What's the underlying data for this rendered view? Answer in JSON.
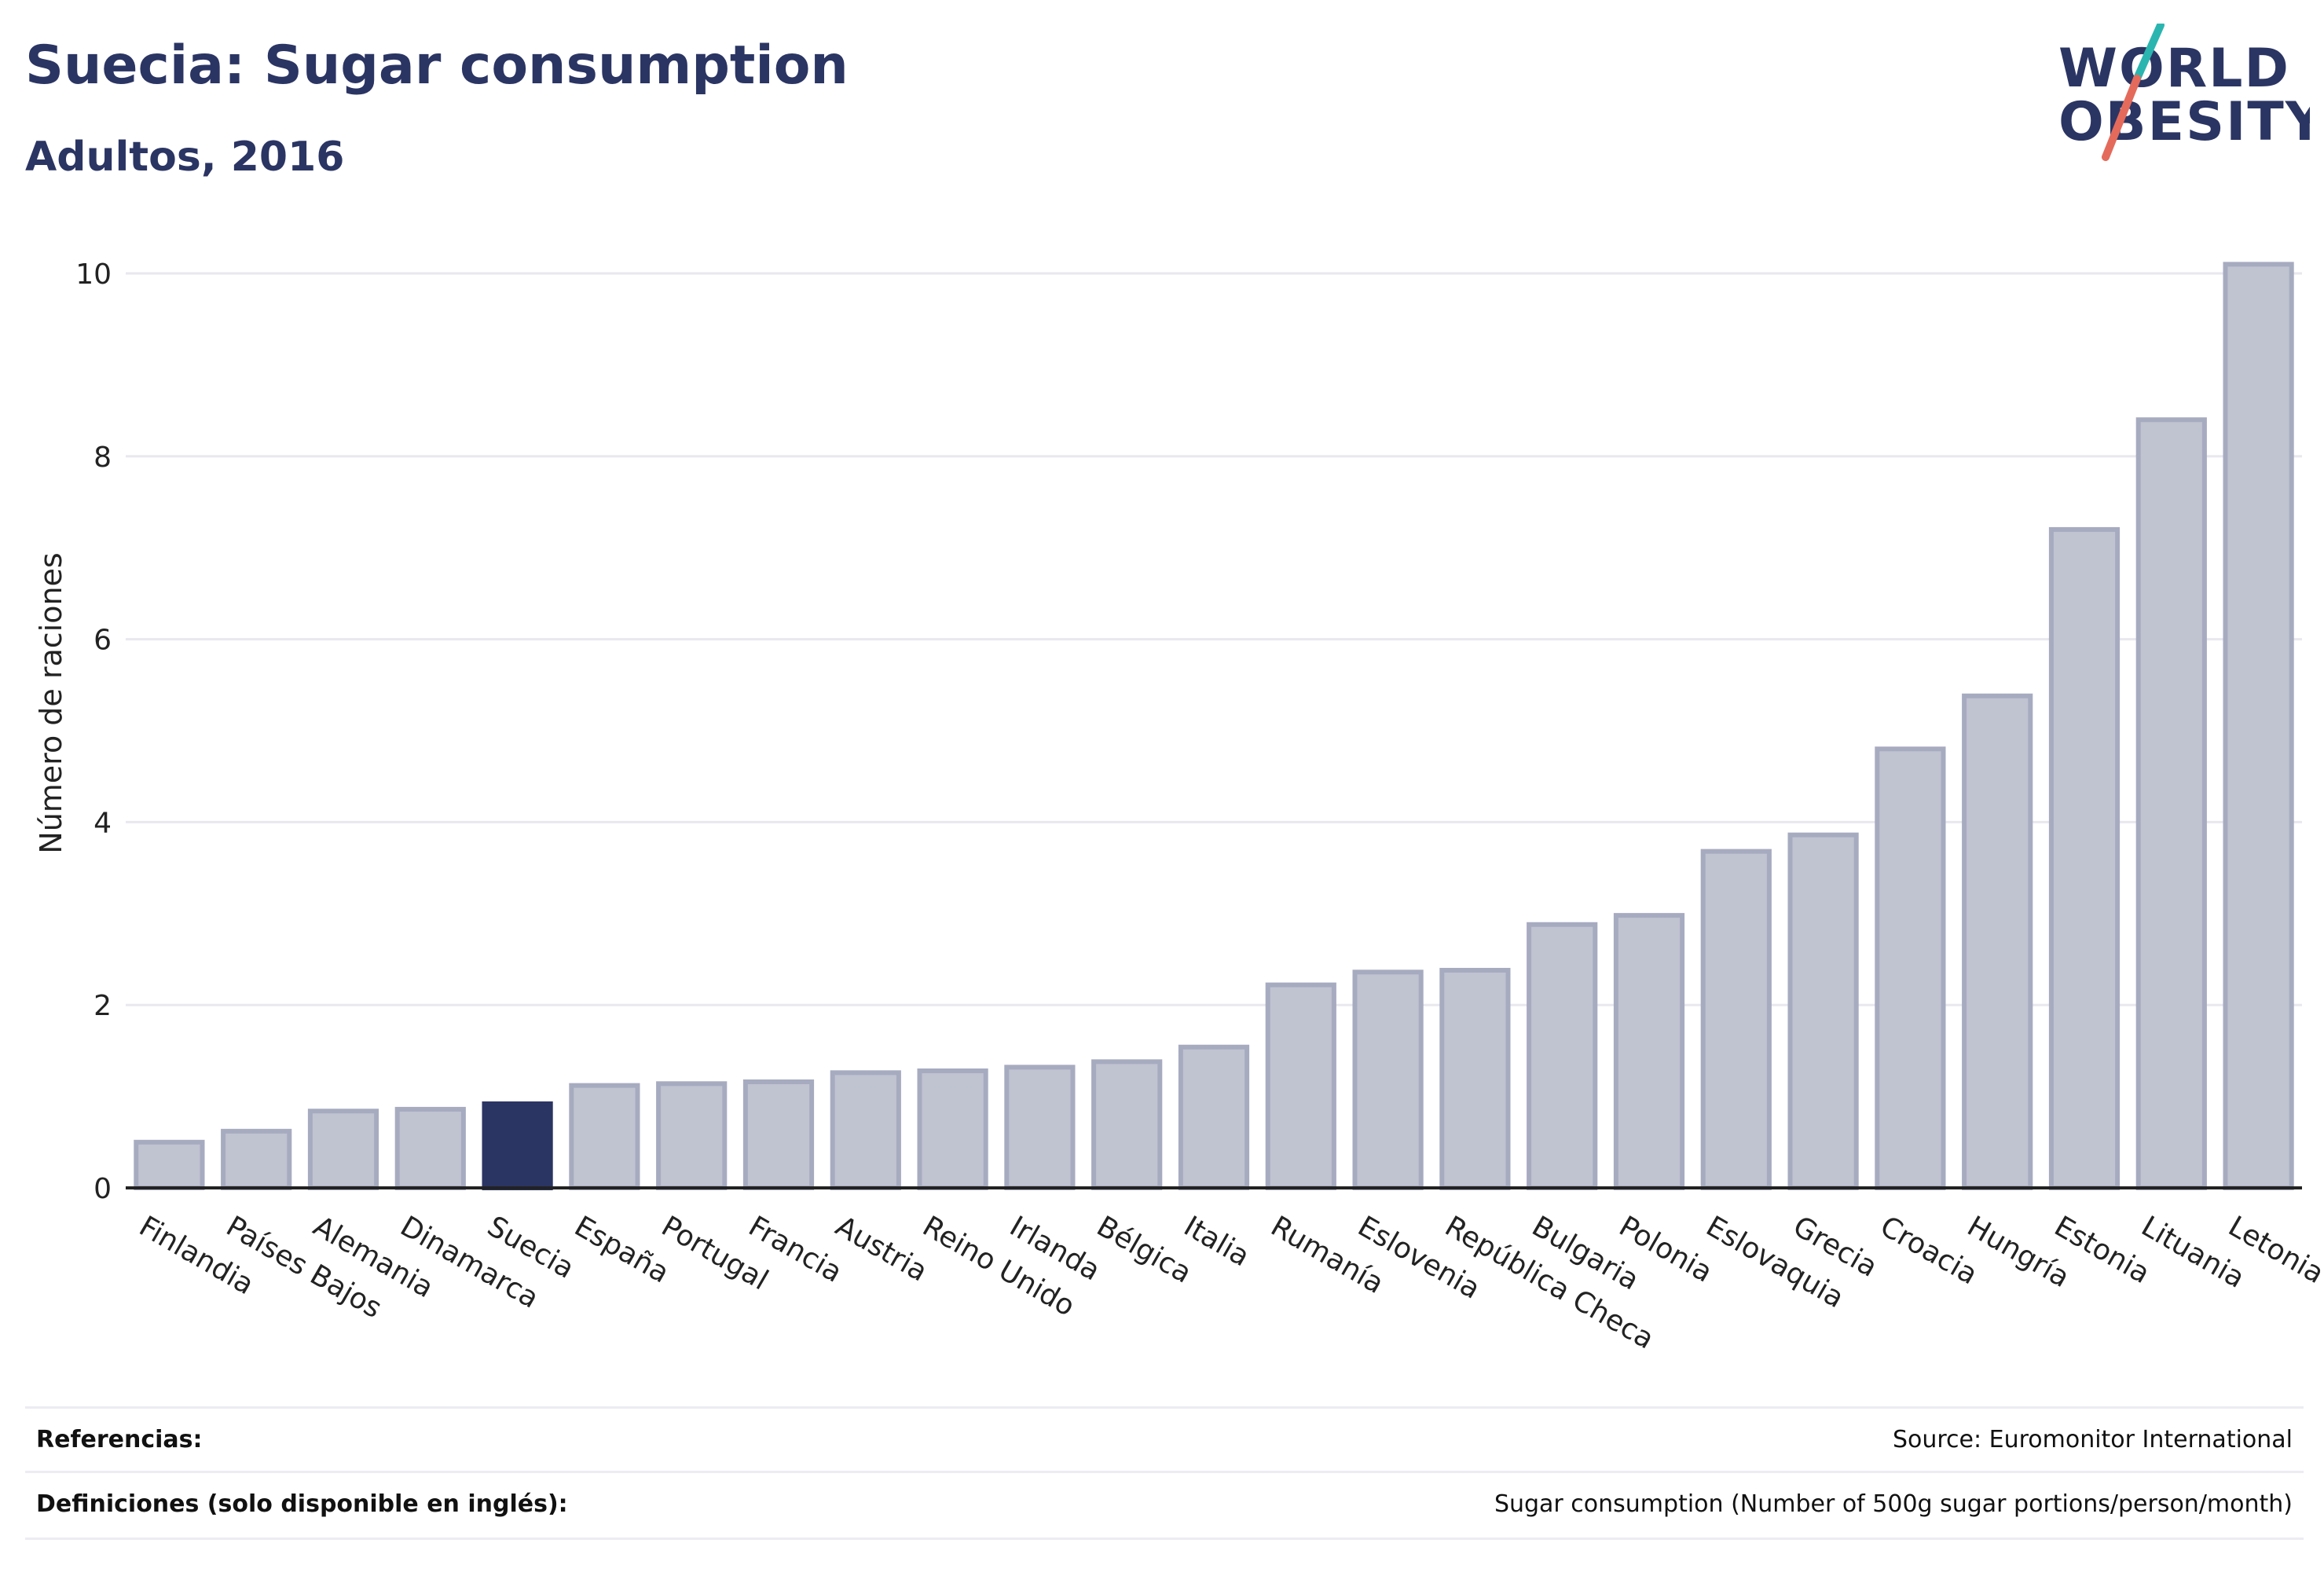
{
  "header": {
    "title": "Suecia: Sugar consumption",
    "subtitle": "Adultos, 2016"
  },
  "logo": {
    "line1": "WORLD",
    "line2": "OBESITY"
  },
  "chart_data": {
    "type": "bar",
    "title": "Suecia: Sugar consumption",
    "subtitle": "Adultos, 2016",
    "xlabel": "",
    "ylabel": "Número de raciones",
    "ylim": [
      0,
      10.5
    ],
    "yticks": [
      0,
      2,
      4,
      6,
      8,
      10
    ],
    "grid": true,
    "highlight": "Suecia",
    "colors": {
      "bar": "#c0c3d0",
      "bar_edge": "#a7abc0",
      "highlight": "#2b3563",
      "grid": "#e8e8ee",
      "axis": "#222222"
    },
    "categories": [
      "Finlandia",
      "Países Bajos",
      "Alemania",
      "Dinamarca",
      "Suecia",
      "España",
      "Portugal",
      "Francia",
      "Austria",
      "Reino Unido",
      "Irlanda",
      "Bélgica",
      "Italia",
      "Rumanía",
      "Eslovenia",
      "República Checa",
      "Bulgaria",
      "Polonia",
      "Eslovaquia",
      "Grecia",
      "Croacia",
      "Hungría",
      "Estonia",
      "Lituania",
      "Letonia"
    ],
    "values": [
      0.5,
      0.62,
      0.84,
      0.86,
      0.92,
      1.12,
      1.14,
      1.16,
      1.26,
      1.28,
      1.32,
      1.38,
      1.54,
      2.22,
      2.36,
      2.38,
      2.88,
      2.98,
      3.68,
      3.86,
      4.8,
      5.38,
      7.2,
      8.4,
      10.1
    ]
  },
  "footer": {
    "references_label": "Referencias:",
    "references_value": "Source: Euromonitor International",
    "definitions_label": "Definiciones (solo disponible en inglés):",
    "definitions_value": "Sugar consumption (Number of 500g sugar portions/person/month)"
  }
}
